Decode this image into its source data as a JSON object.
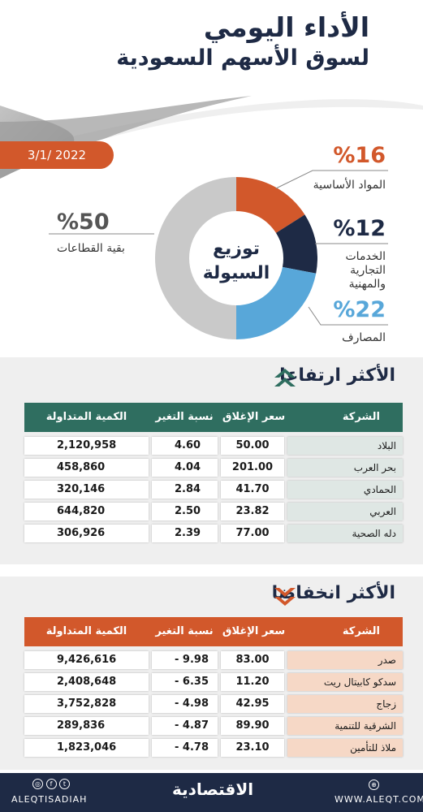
{
  "header": {
    "title_line1": "الأداء اليومي",
    "title_line2": "لسوق الأسهم السعودية",
    "date": "3/1/ 2022"
  },
  "colors": {
    "navy": "#1e2a45",
    "orange": "#d2582b",
    "blue": "#58a7d9",
    "gray": "#c9c9c9",
    "green": "#2f6e60"
  },
  "chart_data": {
    "type": "pie",
    "title": "توزيع السيولة",
    "center_line1": "توزيع",
    "center_line2": "السيولة",
    "slices": [
      {
        "label": "المواد الأساسية",
        "value": 16,
        "display": "%16",
        "color": "#d2582b"
      },
      {
        "label": "الخدمات التجارية والمهنية",
        "label_lines": [
          "الخدمات",
          "التجارية",
          "والمهنية"
        ],
        "value": 12,
        "display": "%12",
        "color": "#1e2a45"
      },
      {
        "label": "المصارف",
        "value": 22,
        "display": "%22",
        "color": "#58a7d9"
      },
      {
        "label": "بقية القطاعات",
        "value": 50,
        "display": "%50",
        "color": "#c9c9c9"
      }
    ]
  },
  "gainers": {
    "title": "الأكثر ارتفاعا",
    "headers": {
      "company": "الشركة",
      "close": "سعر الإغلاق",
      "change": "نسبة التغير %",
      "volume": "الكمية المتداولة"
    },
    "rows": [
      {
        "company": "البلاد",
        "close": "50.00",
        "change": "4.60",
        "volume": "2,120,958"
      },
      {
        "company": "بحر العرب",
        "close": "201.00",
        "change": "4.04",
        "volume": "458,860"
      },
      {
        "company": "الحمادي",
        "close": "41.70",
        "change": "2.84",
        "volume": "320,146"
      },
      {
        "company": "العربي",
        "close": "23.82",
        "change": "2.50",
        "volume": "644,820"
      },
      {
        "company": "دله الصحية",
        "close": "77.00",
        "change": "2.39",
        "volume": "306,926"
      }
    ]
  },
  "losers": {
    "title": "الأكثر انخفاضا",
    "headers": {
      "company": "الشركة",
      "close": "سعر الإغلاق",
      "change": "نسبة التغير %",
      "volume": "الكمية المتداولة"
    },
    "rows": [
      {
        "company": "صدر",
        "close": "83.00",
        "change": "- 9.98",
        "volume": "9,426,616"
      },
      {
        "company": "سدكو كابيتال ريت",
        "close": "11.20",
        "change": "- 6.35",
        "volume": "2,408,648"
      },
      {
        "company": "زجاج",
        "close": "42.95",
        "change": "- 4.98",
        "volume": "3,752,828"
      },
      {
        "company": "الشرقية للتنمية",
        "close": "89.90",
        "change": "- 4.87",
        "volume": "289,836"
      },
      {
        "company": "ملاذ للتأمين",
        "close": "23.10",
        "change": "- 4.78",
        "volume": "1,823,046"
      }
    ]
  },
  "footer": {
    "social": "ALEQTISADIAH",
    "brand": "الاقتصادية",
    "website": "WWW.ALEQT.COM"
  }
}
